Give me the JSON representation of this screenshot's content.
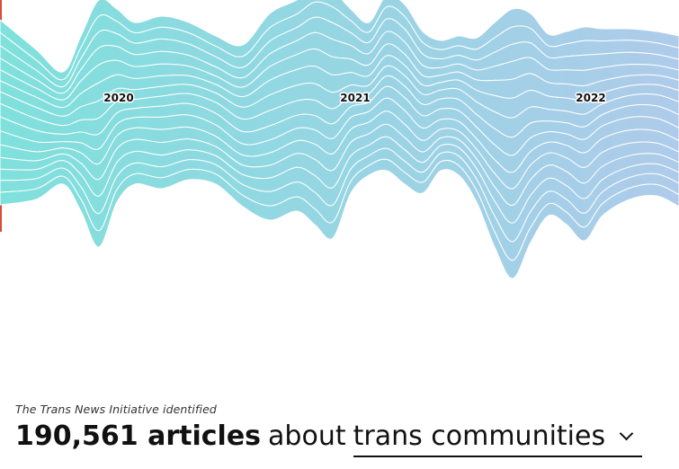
{
  "caption": "The Trans News Initiative identified",
  "headline": {
    "count": "190,561 articles",
    "connector": "about",
    "topic_selected": "trans communities"
  },
  "icons": {
    "dropdown": "chevron-down-icon"
  },
  "colors": {
    "gradient_start": "#7fe0dc",
    "gradient_end": "#aecbea",
    "line": "#ffffff",
    "accent_edge": "#d94a3a"
  },
  "chart_data": {
    "type": "area",
    "stacked": true,
    "offset": "wiggle",
    "x": [
      "2020",
      "2021",
      "2022"
    ],
    "x_tick_labels": [
      "2020",
      "2021",
      "2022"
    ],
    "series": [
      {
        "values": [
          10,
          10,
          10
        ]
      },
      {
        "values": [
          10,
          10,
          10
        ]
      },
      {
        "values": [
          10,
          10,
          10
        ]
      },
      {
        "values": [
          10,
          10,
          10
        ]
      },
      {
        "values": [
          10,
          10,
          10
        ]
      },
      {
        "values": [
          10,
          10,
          10
        ]
      },
      {
        "values": [
          10,
          10,
          10
        ]
      },
      {
        "values": [
          10,
          10,
          10
        ]
      },
      {
        "values": [
          10,
          10,
          10
        ]
      },
      {
        "values": [
          10,
          10,
          10
        ]
      },
      {
        "values": [
          10,
          10,
          10
        ]
      },
      {
        "values": [
          10,
          10,
          10
        ]
      },
      {
        "values": [
          10,
          10,
          10
        ]
      },
      {
        "values": [
          10,
          10,
          10
        ]
      },
      {
        "values": [
          10,
          10,
          10
        ]
      }
    ],
    "legend": false,
    "grid": false
  }
}
